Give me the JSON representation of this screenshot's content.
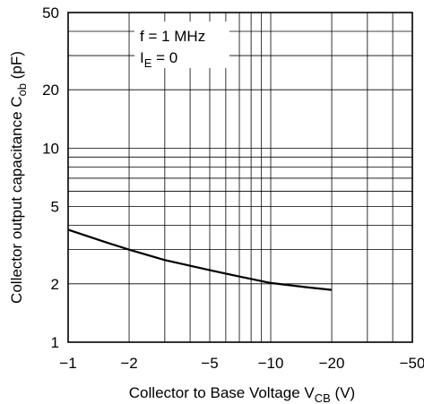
{
  "chart_data": {
    "type": "line",
    "xscale": "log",
    "yscale": "log",
    "x_range": [
      -1,
      -50
    ],
    "y_range": [
      1,
      50
    ],
    "grid": true,
    "legend": "none",
    "x_ticks": [
      {
        "value": -1,
        "label": "−1"
      },
      {
        "value": -2,
        "label": "−2"
      },
      {
        "value": -5,
        "label": "−5"
      },
      {
        "value": -10,
        "label": "−10"
      },
      {
        "value": -20,
        "label": "−20"
      },
      {
        "value": -50,
        "label": "−50"
      }
    ],
    "y_ticks": [
      {
        "value": 1,
        "label": "1"
      },
      {
        "value": 2,
        "label": "2"
      },
      {
        "value": 5,
        "label": "5"
      },
      {
        "value": 10,
        "label": "10"
      },
      {
        "value": 20,
        "label": "20"
      },
      {
        "value": 50,
        "label": "50"
      }
    ],
    "xlabel": {
      "main": "Collector to Base Voltage  V",
      "sub": "CB",
      "unit": "  (V)"
    },
    "ylabel": {
      "main": "Collector output capacitance  C",
      "sub": "ob",
      "unit": "  (pF)"
    },
    "annotations": [
      {
        "main": "f = 1 MHz",
        "sub": "",
        "rest": ""
      },
      {
        "main": "I",
        "sub": "E",
        "rest": " = 0"
      }
    ],
    "series": [
      {
        "x": [
          -1,
          -1.5,
          -2,
          -3,
          -5,
          -7,
          -10,
          -15,
          -20
        ],
        "y": [
          3.8,
          3.3,
          3.0,
          2.65,
          2.35,
          2.18,
          2.02,
          1.92,
          1.86
        ]
      }
    ]
  }
}
